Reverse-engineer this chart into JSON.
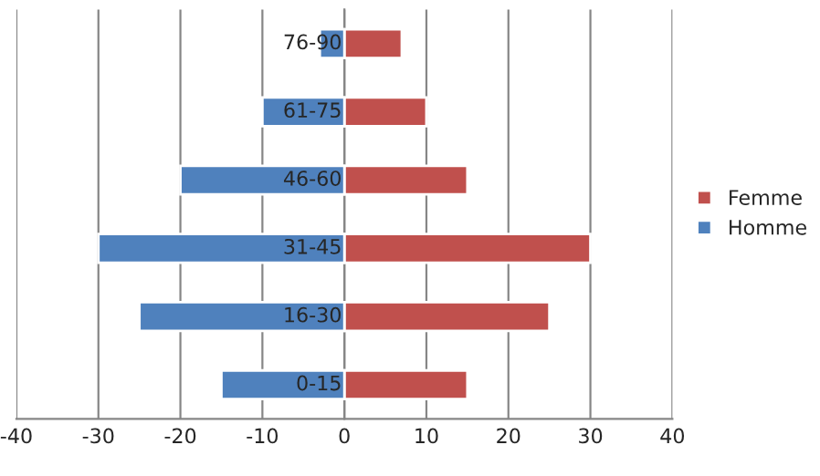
{
  "chart_data": {
    "type": "bar",
    "orientation": "horizontal",
    "categories": [
      "76-90",
      "61-75",
      "46-60",
      "31-45",
      "16-30",
      "0-15"
    ],
    "series": [
      {
        "name": "Femme",
        "color": "#c0504d",
        "values": [
          7,
          10,
          15,
          30,
          25,
          15
        ]
      },
      {
        "name": "Homme",
        "color": "#4f81bd",
        "values": [
          -3,
          -10,
          -20,
          -30,
          -25,
          -15
        ]
      }
    ],
    "xlim": [
      -40,
      40
    ],
    "xticks": [
      -40,
      -30,
      -20,
      -10,
      0,
      10,
      20,
      30,
      40
    ],
    "grid": "x",
    "legend": "right",
    "stacked": true
  }
}
